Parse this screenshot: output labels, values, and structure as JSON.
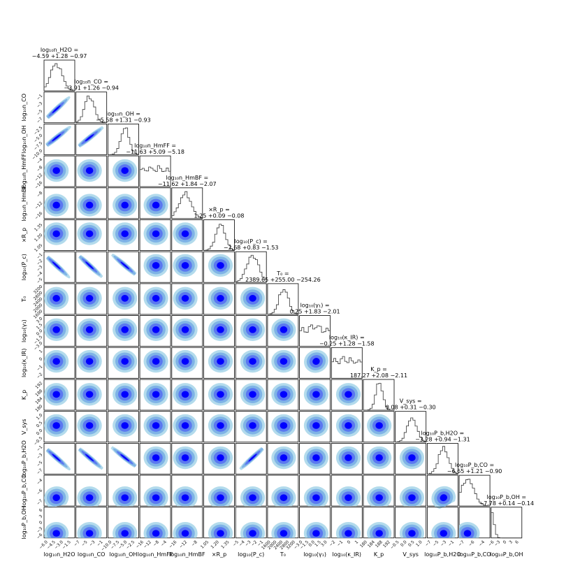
{
  "chart_data": {
    "type": "corner",
    "parameters": [
      {
        "name": "log10_nH2O",
        "axis_label": "log₁₀n_H2O",
        "title_line1": "log₁₀n_H2O =",
        "title_line2": "−4.59 +1.28 −0.97",
        "median": -4.59,
        "err_plus": 1.28,
        "err_minus": 0.97,
        "range": [
          -7,
          -1
        ],
        "ticks": [
          "−6.0",
          "−4.5",
          "−3.0",
          "−1.5"
        ]
      },
      {
        "name": "log10_nCO",
        "axis_label": "log₁₀n_CO",
        "title_line1": "log₁₀n_CO =",
        "title_line2": "−3.91 +1.26 −0.94",
        "median": -3.91,
        "err_plus": 1.26,
        "err_minus": 0.94,
        "range": [
          -7,
          0
        ],
        "ticks": [
          "−7",
          "−5",
          "−3",
          "−1"
        ]
      },
      {
        "name": "log10_nOH",
        "axis_label": "log₁₀n_OH",
        "title_line1": "log₁₀n_OH =",
        "title_line2": "−5.58 +1.31 −0.93",
        "median": -5.58,
        "err_plus": 1.31,
        "err_minus": 0.93,
        "range": [
          -10,
          -2
        ],
        "ticks": [
          "−10.0",
          "−7.5",
          "−5.0",
          "−2.5"
        ]
      },
      {
        "name": "log10_nHmFF",
        "axis_label": "log₁₀n_HmFF",
        "title_line1": "log₁₀n_HmFF =",
        "title_line2": "−11.63 +5.09 −5.18",
        "median": -11.63,
        "err_plus": 5.09,
        "err_minus": 5.18,
        "range": [
          -20,
          -4
        ],
        "ticks": [
          "−16",
          "−12",
          "−8",
          "−4"
        ]
      },
      {
        "name": "log10_nHmBF",
        "axis_label": "log₁₀n_HmBF",
        "title_line1": "log₁₀n_HmBF =",
        "title_line2": "−11.62 +1.84 −2.07",
        "median": -11.62,
        "err_plus": 1.84,
        "err_minus": 2.07,
        "range": [
          -16,
          -6
        ],
        "ticks": [
          "−16",
          "−12",
          "−8"
        ]
      },
      {
        "name": "xRp",
        "axis_label": "×R_p",
        "title_line1": "×R_p =",
        "title_line2": "1.25 +0.09 −0.08",
        "median": 1.25,
        "err_plus": 0.09,
        "err_minus": 0.08,
        "range": [
          0.95,
          1.5
        ],
        "ticks": [
          "1.05",
          "1.20",
          "1.35"
        ]
      },
      {
        "name": "log10_Pc",
        "axis_label": "log₁₀(P_c)",
        "title_line1": "log₁₀(P_c) =",
        "title_line2": "−2.68 +0.83 −1.53",
        "median": -2.68,
        "err_plus": 0.83,
        "err_minus": 1.53,
        "range": [
          -6,
          0
        ],
        "ticks": [
          "−5",
          "−4",
          "−3",
          "−2",
          "−1"
        ]
      },
      {
        "name": "T0",
        "axis_label": "T₀",
        "title_line1": "T₀ =",
        "title_line2": "2389.65 +255.00 −254.26",
        "median": 2389.65,
        "err_plus": 255.0,
        "err_minus": 254.26,
        "range": [
          1500,
          3200
        ],
        "ticks": [
          "1600",
          "2000",
          "2400",
          "2800",
          "3200"
        ]
      },
      {
        "name": "log10_gamma1",
        "axis_label": "log₁₀(γ₁)",
        "title_line1": "log₁₀(γ₁) =",
        "title_line2": "0.25 +1.83 −2.01",
        "median": 0.25,
        "err_plus": 1.83,
        "err_minus": 2.01,
        "range": [
          -3,
          3
        ],
        "ticks": [
          "−3.0",
          "−1.5",
          "0.0",
          "1.5",
          "3.0"
        ]
      },
      {
        "name": "log10_kIR",
        "axis_label": "log₁₀(κ_IR)",
        "title_line1": "log₁₀(κ_IR) =",
        "title_line2": "−0.25 +1.28 −1.58",
        "median": -0.25,
        "err_plus": 1.28,
        "err_minus": 1.58,
        "range": [
          -3,
          2
        ],
        "ticks": [
          "−2",
          "−1",
          "0",
          "1"
        ]
      },
      {
        "name": "Kp",
        "axis_label": "K_p",
        "title_line1": "K_p =",
        "title_line2": "187.27 +2.08 −2.11",
        "median": 187.27,
        "err_plus": 2.08,
        "err_minus": 2.11,
        "range": [
          178,
          196
        ],
        "ticks": [
          "180",
          "184",
          "188",
          "192"
        ]
      },
      {
        "name": "Vsys",
        "axis_label": "V_sys",
        "title_line1": "V_sys =",
        "title_line2": "0.08 +0.31 −0.30",
        "median": 0.08,
        "err_plus": 0.31,
        "err_minus": 0.3,
        "range": [
          -1,
          1
        ],
        "ticks": [
          "−0.5",
          "0.0",
          "0.5",
          "1.0"
        ]
      },
      {
        "name": "log10_Pb_H2O",
        "axis_label": "log₁₀P_b,H2O",
        "title_line1": "log₁₀P_b,H2O =",
        "title_line2": "−3.28 +0.94 −1.31",
        "median": -3.28,
        "err_plus": 0.94,
        "err_minus": 1.31,
        "range": [
          -7,
          0
        ],
        "ticks": [
          "−7",
          "−5",
          "−3",
          "−1"
        ]
      },
      {
        "name": "log10_Pb_CO",
        "axis_label": "log₁₀P_b,CO",
        "title_line1": "log₁₀P_b,CO =",
        "title_line2": "−6.65 +1.21 −0.90",
        "median": -6.65,
        "err_plus": 1.21,
        "err_minus": 0.9,
        "range": [
          -8,
          -3
        ],
        "ticks": [
          "−7",
          "−6",
          "−4"
        ]
      },
      {
        "name": "log10_Pb_OH",
        "axis_label": "log₁₀P_b,OH",
        "title_line1": "log₁₀P_b,OH =",
        "title_line2": "−7.78 +0.14 −0.14",
        "median": -7.78,
        "err_plus": 0.14,
        "err_minus": 0.14,
        "range": [
          -8,
          6
        ],
        "ticks": [
          "−6",
          "−3",
          "0",
          "3",
          "6"
        ]
      }
    ],
    "contour_levels": [
      "#0000ff",
      "#5b78f0",
      "#7fb3e6",
      "#b3dbec"
    ],
    "grid": false,
    "legend": "none"
  }
}
